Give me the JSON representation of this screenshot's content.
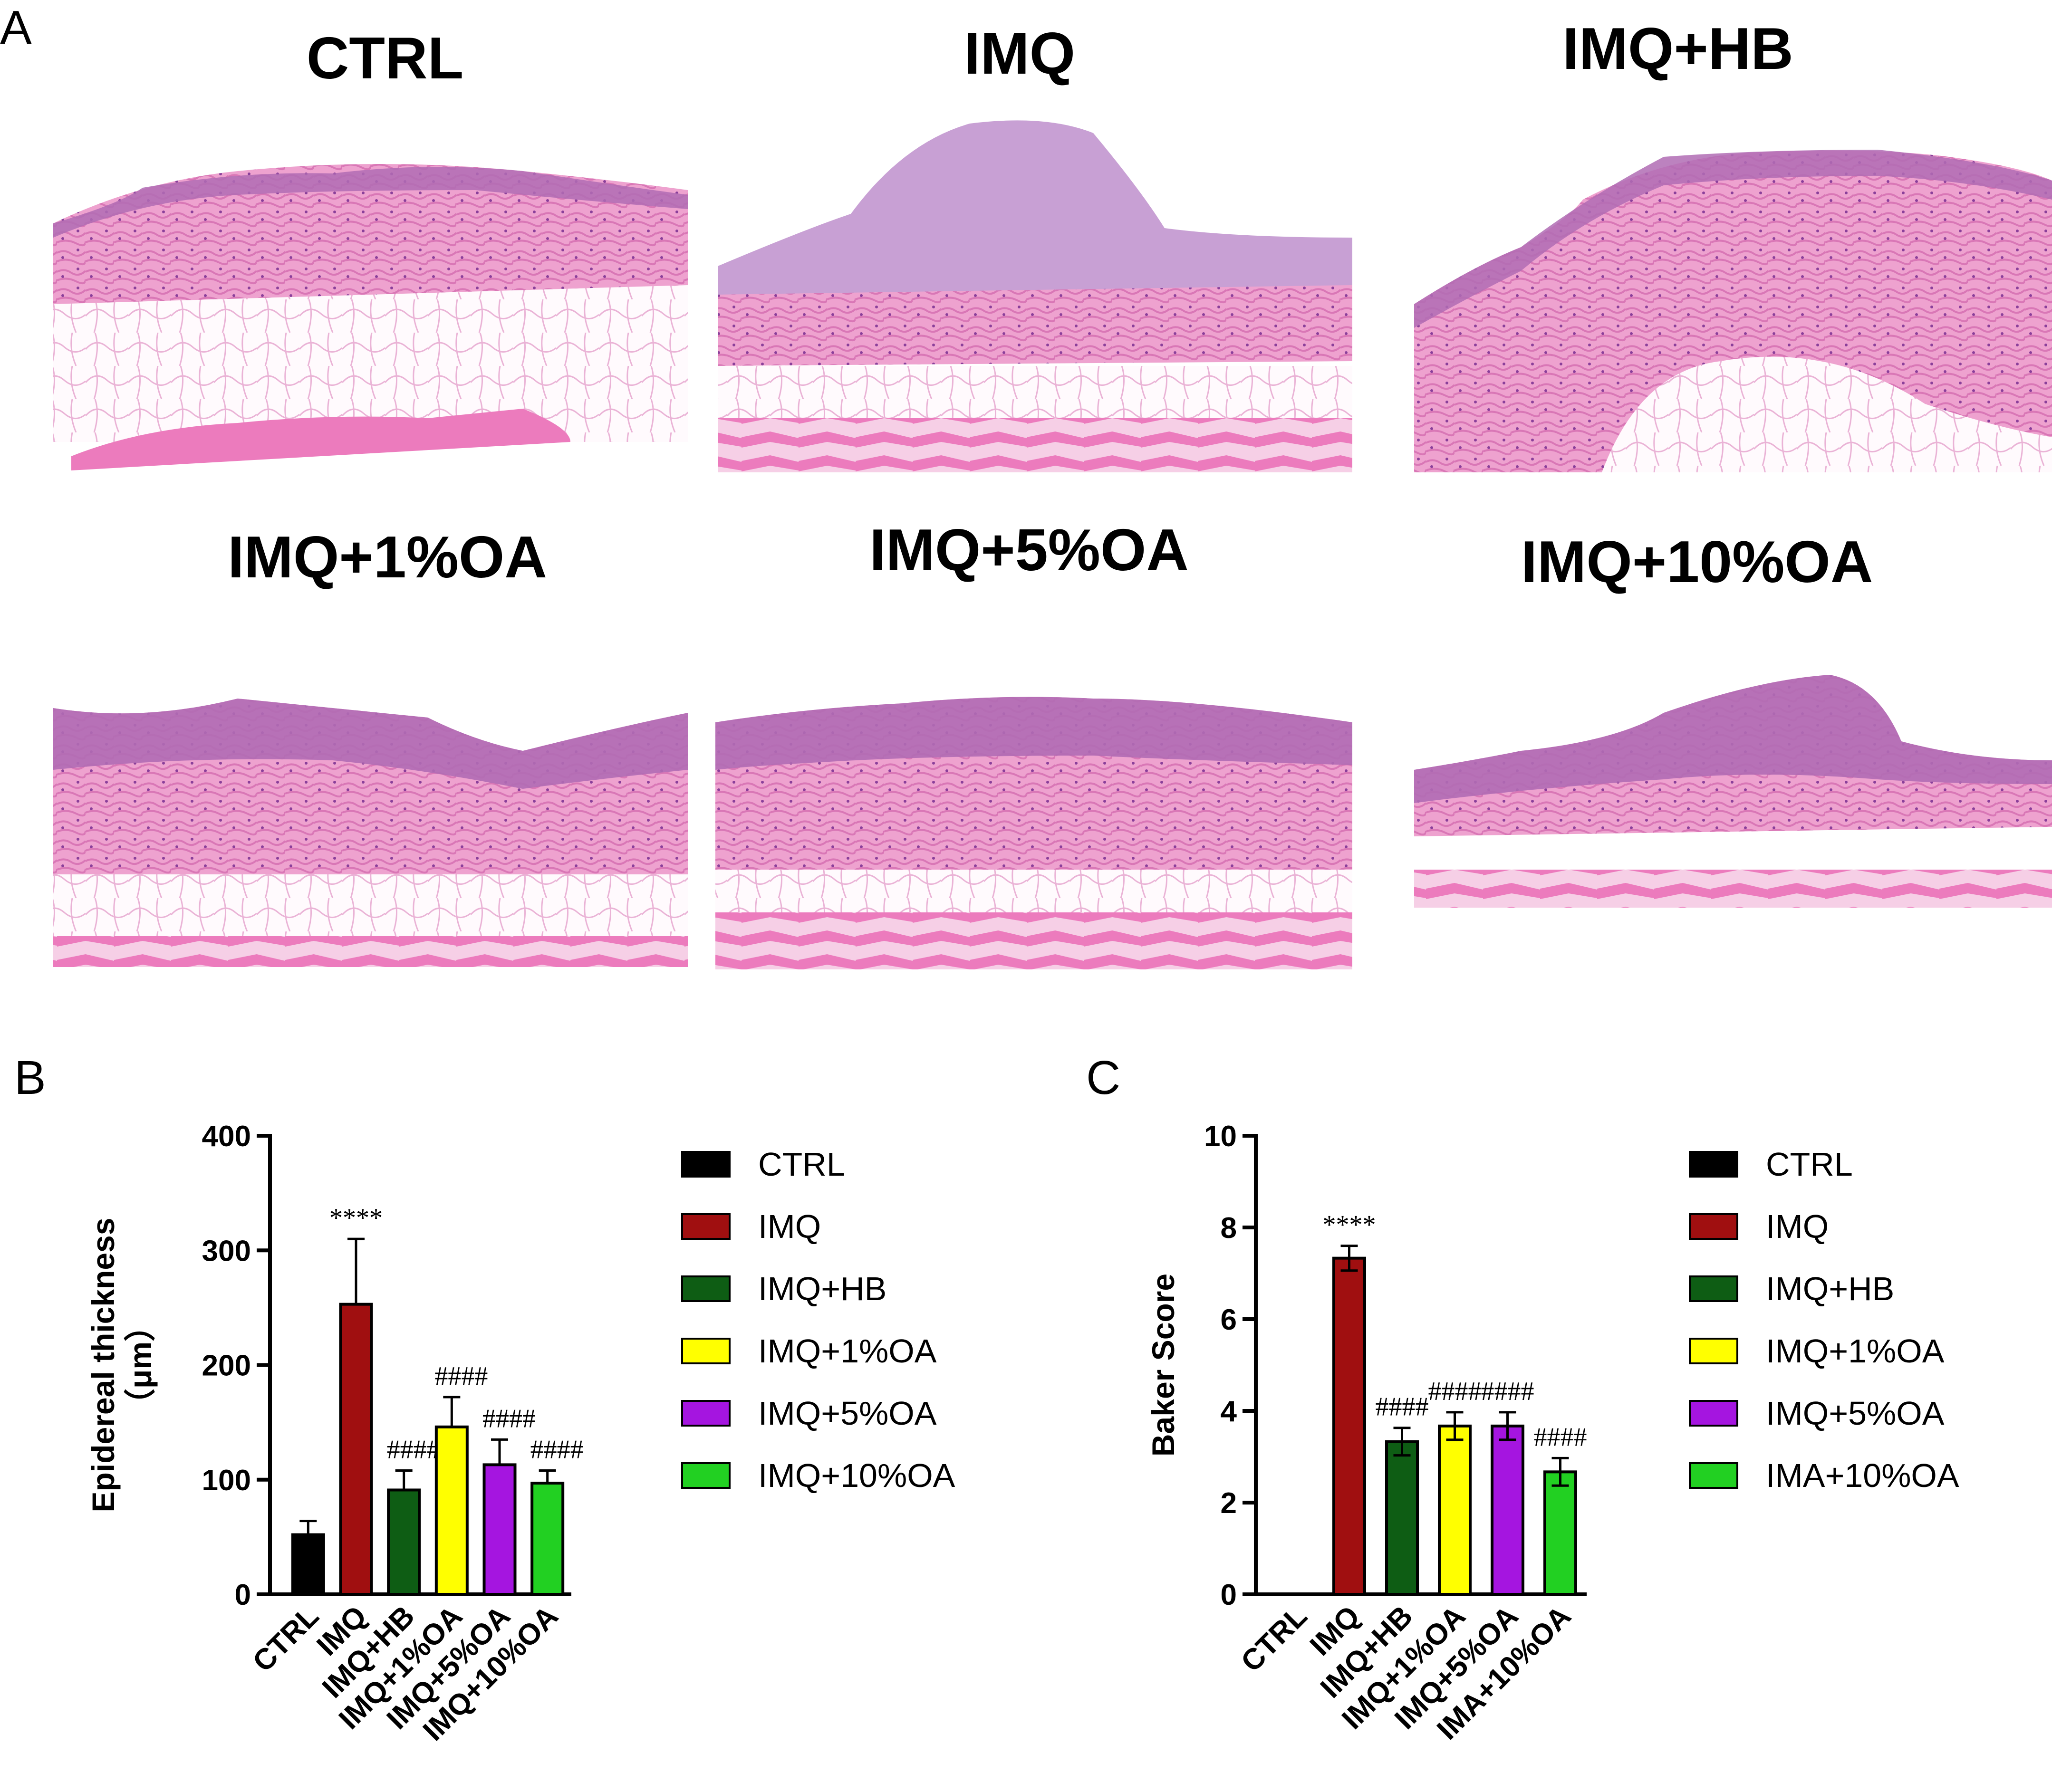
{
  "panels": {
    "A": {
      "letter": "A"
    },
    "B": {
      "letter": "B"
    },
    "C": {
      "letter": "C"
    }
  },
  "histology": {
    "panel_titles": [
      "CTRL",
      "IMQ",
      "IMQ+HB",
      "IMQ+1%OA",
      "IMQ+5%OA",
      "IMQ+10%OA"
    ],
    "colors": {
      "tissue_pink": "#e98fc4",
      "epidermis_purple": "#b06cb4",
      "fat_white": "#ffffff",
      "muscle_pink": "#ec7bbd"
    }
  },
  "chart_data": [
    {
      "type": "bar",
      "panel": "B",
      "ylabel": "Epidereal thickness",
      "ylabel_unit": "（μm）",
      "ylim": [
        0,
        400
      ],
      "yticks": [
        "0",
        "100",
        "200",
        "300",
        "400"
      ],
      "categories": [
        "CTRL",
        "IMQ",
        "IMQ+HB",
        "IMQ+1%OA",
        "IMQ+5%OA",
        "IMQ+10%OA"
      ],
      "values": [
        52,
        253,
        91,
        146,
        113,
        97
      ],
      "errors": [
        12,
        57,
        17,
        26,
        22,
        11
      ],
      "annotations": [
        "",
        "****",
        "####",
        "####",
        "####",
        "####"
      ],
      "colors": [
        "#000000",
        "#a00f10",
        "#0e5d14",
        "#ffff00",
        "#a515e0",
        "#22d022"
      ],
      "legend": {
        "placement": "right",
        "entries": [
          "CTRL",
          "IMQ",
          "IMQ+HB",
          "IMQ+1%OA",
          "IMQ+5%OA",
          "IMQ+10%OA"
        ]
      }
    },
    {
      "type": "bar",
      "panel": "C",
      "ylabel": "Baker Score",
      "ylim": [
        0,
        10
      ],
      "yticks": [
        "0",
        "2",
        "4",
        "6",
        "8",
        "10"
      ],
      "categories": [
        "CTRL",
        "IMQ",
        "IMQ+HB",
        "IMQ+1%OA",
        "IMQ+5%OA",
        "IMA+10%OA"
      ],
      "values": [
        0,
        7.33,
        3.33,
        3.67,
        3.67,
        2.67
      ],
      "errors": [
        0,
        0.27,
        0.3,
        0.3,
        0.3,
        0.3
      ],
      "annotations": [
        "",
        "****",
        "####",
        "####",
        "####",
        "####"
      ],
      "colors": [
        "#000000",
        "#a00f10",
        "#0e5d14",
        "#ffff00",
        "#a515e0",
        "#22d022"
      ],
      "legend": {
        "placement": "right",
        "entries": [
          "CTRL",
          "IMQ",
          "IMQ+HB",
          "IMQ+1%OA",
          "IMQ+5%OA",
          "IMA+10%OA"
        ]
      }
    }
  ]
}
